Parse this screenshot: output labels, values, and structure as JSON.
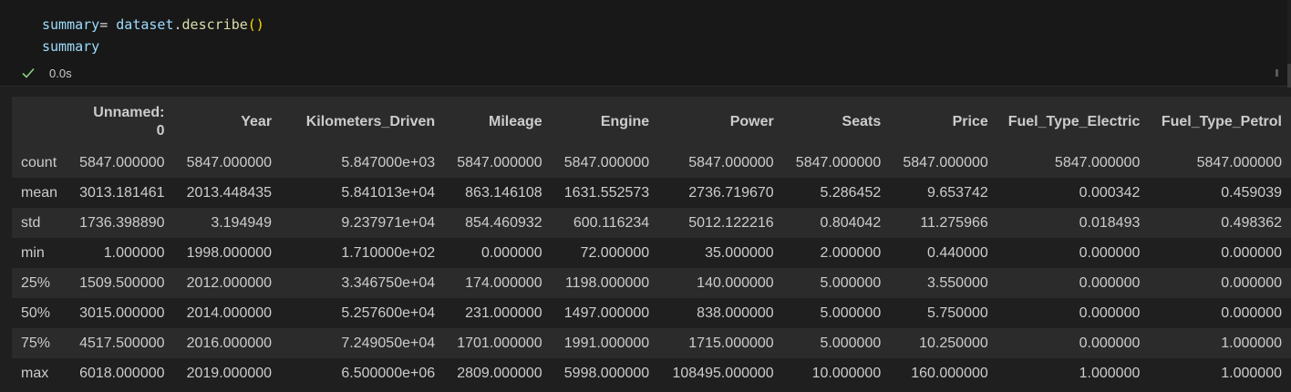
{
  "code": {
    "line1": {
      "var": "summary",
      "op": "= ",
      "obj": "dataset",
      "dot": ".",
      "fn": "describe",
      "paren": "()"
    },
    "line2": {
      "var": "summary"
    }
  },
  "status": {
    "icon": "check-icon",
    "time": "0.0s",
    "color": "#89d185"
  },
  "table": {
    "columns": [
      "Unnamed:",
      "0",
      "Year",
      "Kilometers_Driven",
      "Mileage",
      "Engine",
      "Power",
      "Seats",
      "Price",
      "Fuel_Type_Electric",
      "Fuel_Type_Petrol"
    ],
    "rows": [
      {
        "label": "count",
        "cells": [
          "5847.000000",
          "5847.000000",
          "5.847000e+03",
          "5847.000000",
          "5847.000000",
          "5847.000000",
          "5847.000000",
          "5847.000000",
          "5847.000000",
          "5847.000000"
        ]
      },
      {
        "label": "mean",
        "cells": [
          "3013.181461",
          "2013.448435",
          "5.841013e+04",
          "863.146108",
          "1631.552573",
          "2736.719670",
          "5.286452",
          "9.653742",
          "0.000342",
          "0.459039"
        ]
      },
      {
        "label": "std",
        "cells": [
          "1736.398890",
          "3.194949",
          "9.237971e+04",
          "854.460932",
          "600.116234",
          "5012.122216",
          "0.804042",
          "11.275966",
          "0.018493",
          "0.498362"
        ]
      },
      {
        "label": "min",
        "cells": [
          "1.000000",
          "1998.000000",
          "1.710000e+02",
          "0.000000",
          "72.000000",
          "35.000000",
          "2.000000",
          "0.440000",
          "0.000000",
          "0.000000"
        ]
      },
      {
        "label": "25%",
        "cells": [
          "1509.500000",
          "2012.000000",
          "3.346750e+04",
          "174.000000",
          "1198.000000",
          "140.000000",
          "5.000000",
          "3.550000",
          "0.000000",
          "0.000000"
        ]
      },
      {
        "label": "50%",
        "cells": [
          "3015.000000",
          "2014.000000",
          "5.257600e+04",
          "231.000000",
          "1497.000000",
          "838.000000",
          "5.000000",
          "5.750000",
          "0.000000",
          "0.000000"
        ]
      },
      {
        "label": "75%",
        "cells": [
          "4517.500000",
          "2016.000000",
          "7.249050e+04",
          "1701.000000",
          "1991.000000",
          "1715.000000",
          "5.000000",
          "10.250000",
          "0.000000",
          "1.000000"
        ]
      },
      {
        "label": "max",
        "cells": [
          "6018.000000",
          "2019.000000",
          "6.500000e+06",
          "2809.000000",
          "5998.000000",
          "108495.000000",
          "10.000000",
          "160.000000",
          "1.000000",
          "1.000000"
        ]
      }
    ]
  }
}
